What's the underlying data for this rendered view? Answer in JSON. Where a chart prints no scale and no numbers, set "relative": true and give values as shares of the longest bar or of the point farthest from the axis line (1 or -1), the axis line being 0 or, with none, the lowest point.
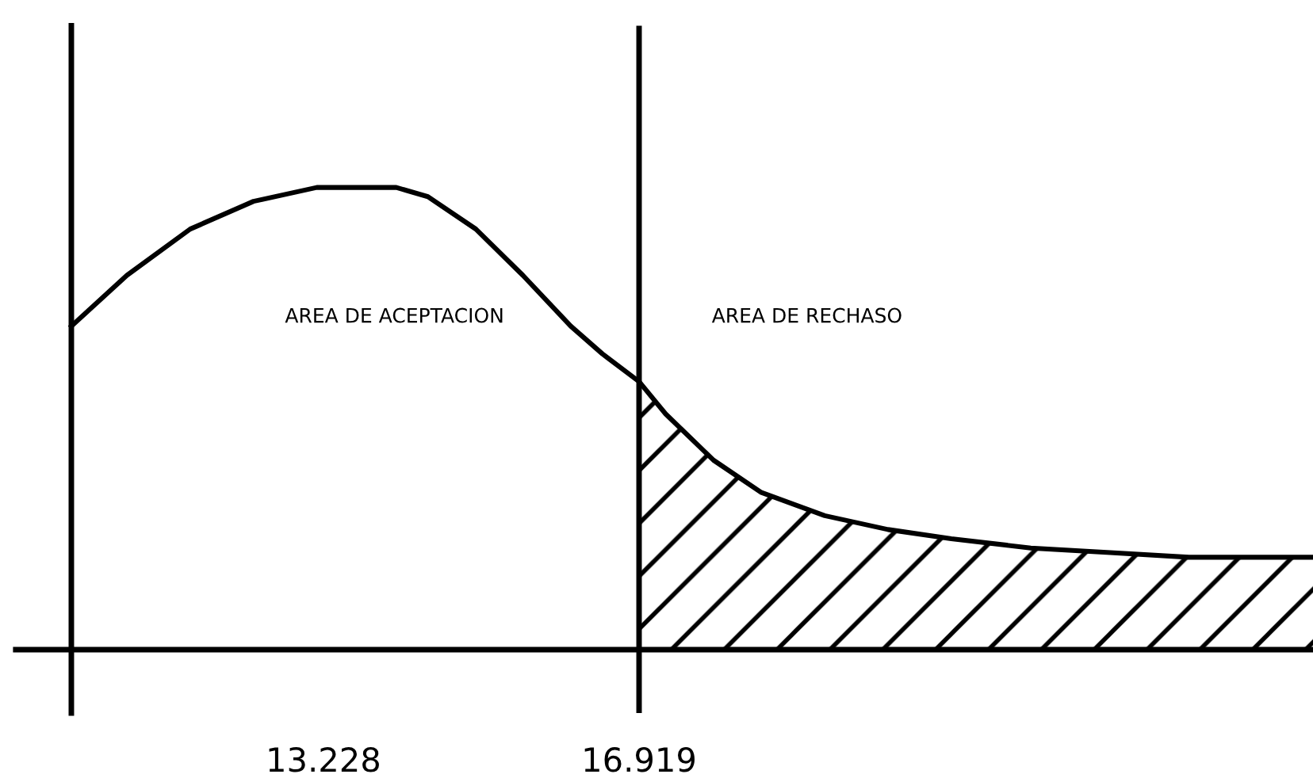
{
  "chart_data": {
    "type": "line",
    "relative": true,
    "xlim": [
      9.63,
      24.8
    ],
    "xticks": [
      13.228,
      16.919
    ],
    "series": [
      {
        "color": "#000000",
        "x": [
          10.28,
          10.93,
          11.67,
          12.41,
          13.15,
          13.62,
          14.08,
          14.45,
          15.01,
          15.56,
          16.12,
          16.49,
          16.919,
          17.23,
          17.79,
          18.35,
          19.09,
          19.83,
          20.57,
          21.5,
          22.43,
          23.35,
          24.8
        ],
        "values": [
          0.7,
          0.81,
          0.91,
          0.97,
          1.0,
          1.0,
          1.0,
          0.98,
          0.91,
          0.81,
          0.7,
          0.64,
          0.58,
          0.51,
          0.41,
          0.34,
          0.29,
          0.26,
          0.24,
          0.22,
          0.21,
          0.2,
          0.2
        ]
      },
      {
        "type": "area",
        "color": "#000000",
        "x": [
          16.919,
          17.23,
          17.79,
          18.35,
          19.09,
          19.83,
          20.57,
          21.5,
          22.43,
          23.35,
          24.8
        ],
        "values": [
          0.58,
          0.51,
          0.41,
          0.34,
          0.29,
          0.26,
          0.24,
          0.22,
          0.21,
          0.2,
          0.2
        ]
      }
    ],
    "ref_lines": [
      {
        "axis": "x",
        "value": 16.919,
        "label": null,
        "color": "#000000"
      }
    ],
    "annotations": [
      "AREA DE ACEPTACION",
      "AREA DE RECHASO"
    ],
    "grid": false,
    "legend": false
  }
}
